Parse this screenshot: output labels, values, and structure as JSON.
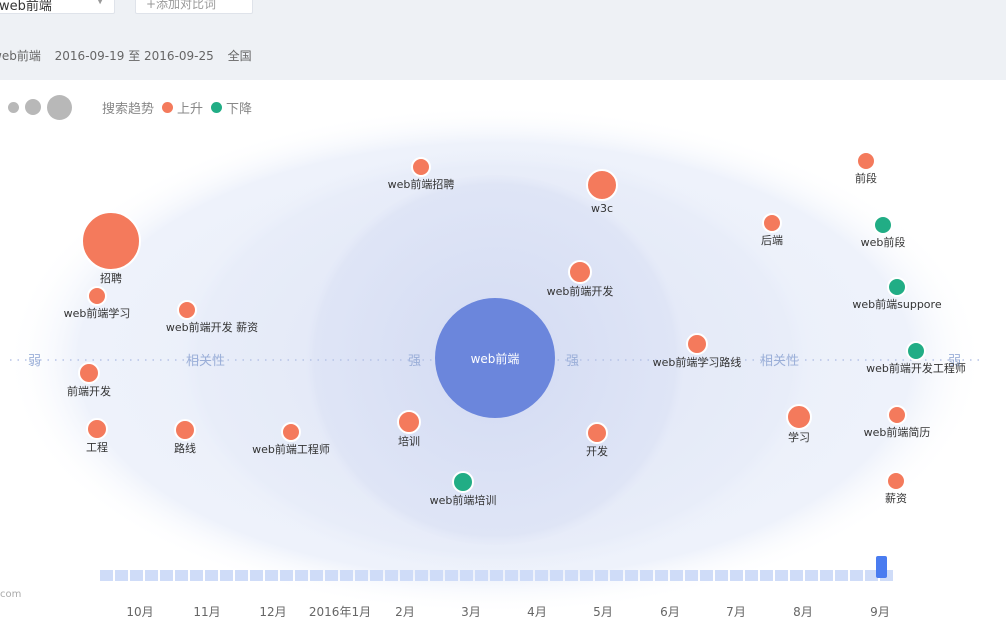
{
  "header": {
    "keyword_tab": "web前端",
    "compare_tab": "+添加对比词",
    "sub_keyword": "web前端",
    "date_range": "2016-09-19 至 2016-09-25",
    "region": "全国"
  },
  "legend": {
    "title": "搜索趋势",
    "up_label": "上升",
    "down_label": "下降",
    "up_color": "#f47a5c",
    "down_color": "#21ad85"
  },
  "center": {
    "label": "web前端",
    "color": "#6b86dc"
  },
  "axis": {
    "weak": "弱",
    "relevance": "相关性",
    "strong": "强"
  },
  "nodes": [
    {
      "label": "招聘",
      "trend": "up",
      "size": "large"
    },
    {
      "label": "web前端学习",
      "trend": "up",
      "size": "small"
    },
    {
      "label": "web前端开发 薪资",
      "trend": "up",
      "size": "small"
    },
    {
      "label": "前端开发",
      "trend": "up",
      "size": "small"
    },
    {
      "label": "工程",
      "trend": "up",
      "size": "small"
    },
    {
      "label": "路线",
      "trend": "up",
      "size": "small"
    },
    {
      "label": "web前端工程师",
      "trend": "up",
      "size": "small"
    },
    {
      "label": "web前端招聘",
      "trend": "up",
      "size": "small"
    },
    {
      "label": "w3c",
      "trend": "up",
      "size": "medium"
    },
    {
      "label": "web前端开发",
      "trend": "up",
      "size": "small"
    },
    {
      "label": "培训",
      "trend": "up",
      "size": "small"
    },
    {
      "label": "开发",
      "trend": "up",
      "size": "small"
    },
    {
      "label": "web前端培训",
      "trend": "down",
      "size": "small"
    },
    {
      "label": "web前端学习路线",
      "trend": "up",
      "size": "small"
    },
    {
      "label": "后端",
      "trend": "up",
      "size": "small"
    },
    {
      "label": "学习",
      "trend": "up",
      "size": "small"
    },
    {
      "label": "前段",
      "trend": "up",
      "size": "small"
    },
    {
      "label": "web前段",
      "trend": "down",
      "size": "small"
    },
    {
      "label": "web前端suppore",
      "trend": "down",
      "size": "small"
    },
    {
      "label": "web前端开发工程师",
      "trend": "down",
      "size": "small"
    },
    {
      "label": "web前端简历",
      "trend": "up",
      "size": "small"
    },
    {
      "label": "薪资",
      "trend": "up",
      "size": "small"
    }
  ],
  "timeline": {
    "months": [
      "10月",
      "11月",
      "12月",
      "2016年1月",
      "2月",
      "3月",
      "4月",
      "5月",
      "6月",
      "7月",
      "8月",
      "9月"
    ],
    "selected_week": "2016-09-19 至 2016-09-25"
  },
  "footer": {
    "fragment": "com"
  }
}
